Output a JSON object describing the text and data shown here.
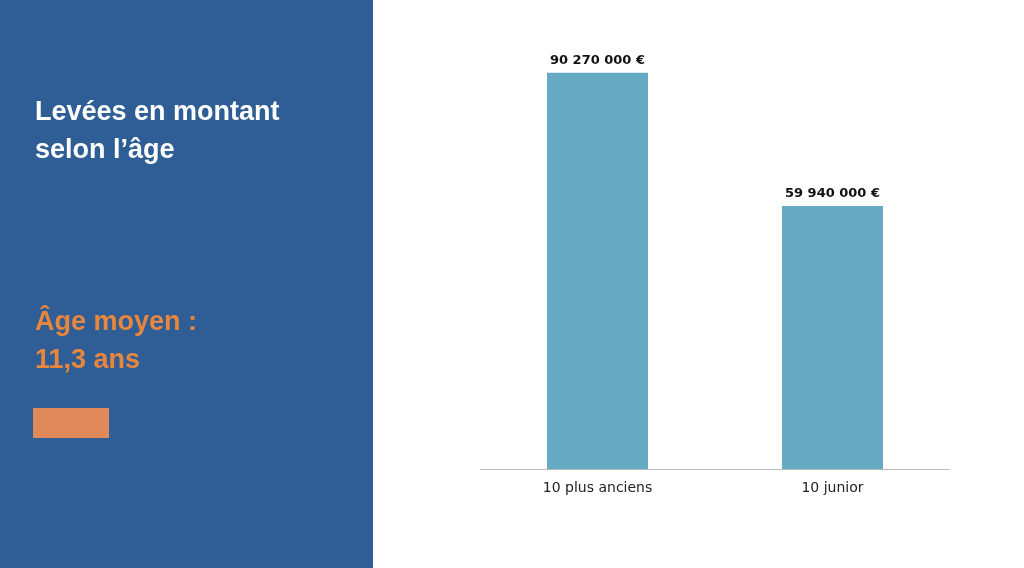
{
  "chart_data": {
    "type": "bar",
    "title": "Levées en montant selon l’âge",
    "categories": [
      "10 plus anciens",
      "10 junior"
    ],
    "values": [
      90270000,
      59940000
    ],
    "value_labels": [
      "90 270 000 €",
      "59 940 000 €"
    ],
    "color": "#67aac4",
    "annotations": [
      "Âge moyen : 11,3 ans"
    ],
    "grid": false,
    "legend": false
  }
}
